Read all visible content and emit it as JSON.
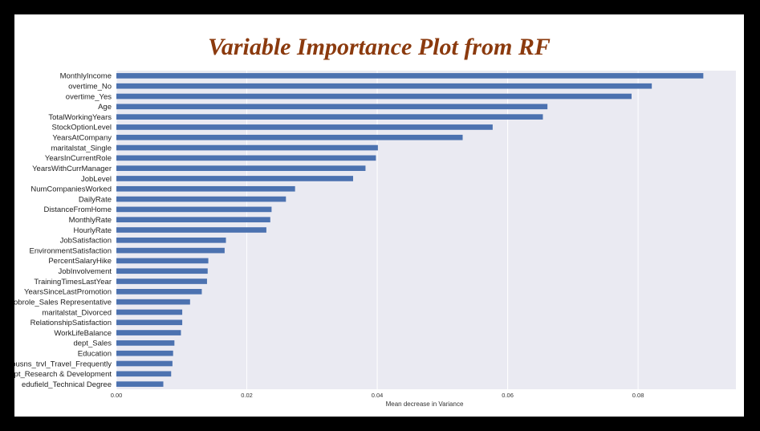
{
  "chart_data": {
    "type": "bar",
    "orientation": "horizontal",
    "title": "Variable Importance Plot from RF",
    "xlabel": "Mean decrease in Variance",
    "ylabel": "",
    "xlim": [
      0,
      0.095
    ],
    "xticks": [
      "0.00",
      "0.02",
      "0.04",
      "0.06",
      "0.08"
    ],
    "xtick_values": [
      0,
      0.02,
      0.04,
      0.06,
      0.08
    ],
    "grid": true,
    "bar_color": "#4c72b0",
    "background_color": "#eaeaf2",
    "categories": [
      "MonthlyIncome",
      "overtime_No",
      "overtime_Yes",
      "Age",
      "TotalWorkingYears",
      "StockOptionLevel",
      "YearsAtCompany",
      "maritalstat_Single",
      "YearsInCurrentRole",
      "YearsWithCurrManager",
      "JobLevel",
      "NumCompaniesWorked",
      "DailyRate",
      "DistanceFromHome",
      "MonthlyRate",
      "HourlyRate",
      "JobSatisfaction",
      "EnvironmentSatisfaction",
      "PercentSalaryHike",
      "JobInvolvement",
      "TrainingTimesLastYear",
      "YearsSinceLastPromotion",
      "jobrole_Sales Representative",
      "maritalstat_Divorced",
      "RelationshipSatisfaction",
      "WorkLifeBalance",
      "dept_Sales",
      "Education",
      "busns_trvl_Travel_Frequently",
      "dept_Research & Development",
      "edufield_Technical Degree"
    ],
    "values": [
      0.09,
      0.0821,
      0.079,
      0.0661,
      0.0654,
      0.0577,
      0.0531,
      0.0401,
      0.0398,
      0.0382,
      0.0363,
      0.0274,
      0.026,
      0.0238,
      0.0236,
      0.023,
      0.0168,
      0.0166,
      0.0141,
      0.014,
      0.0139,
      0.0131,
      0.0113,
      0.0101,
      0.0101,
      0.0099,
      0.0089,
      0.0087,
      0.0086,
      0.0084,
      0.0072
    ]
  }
}
